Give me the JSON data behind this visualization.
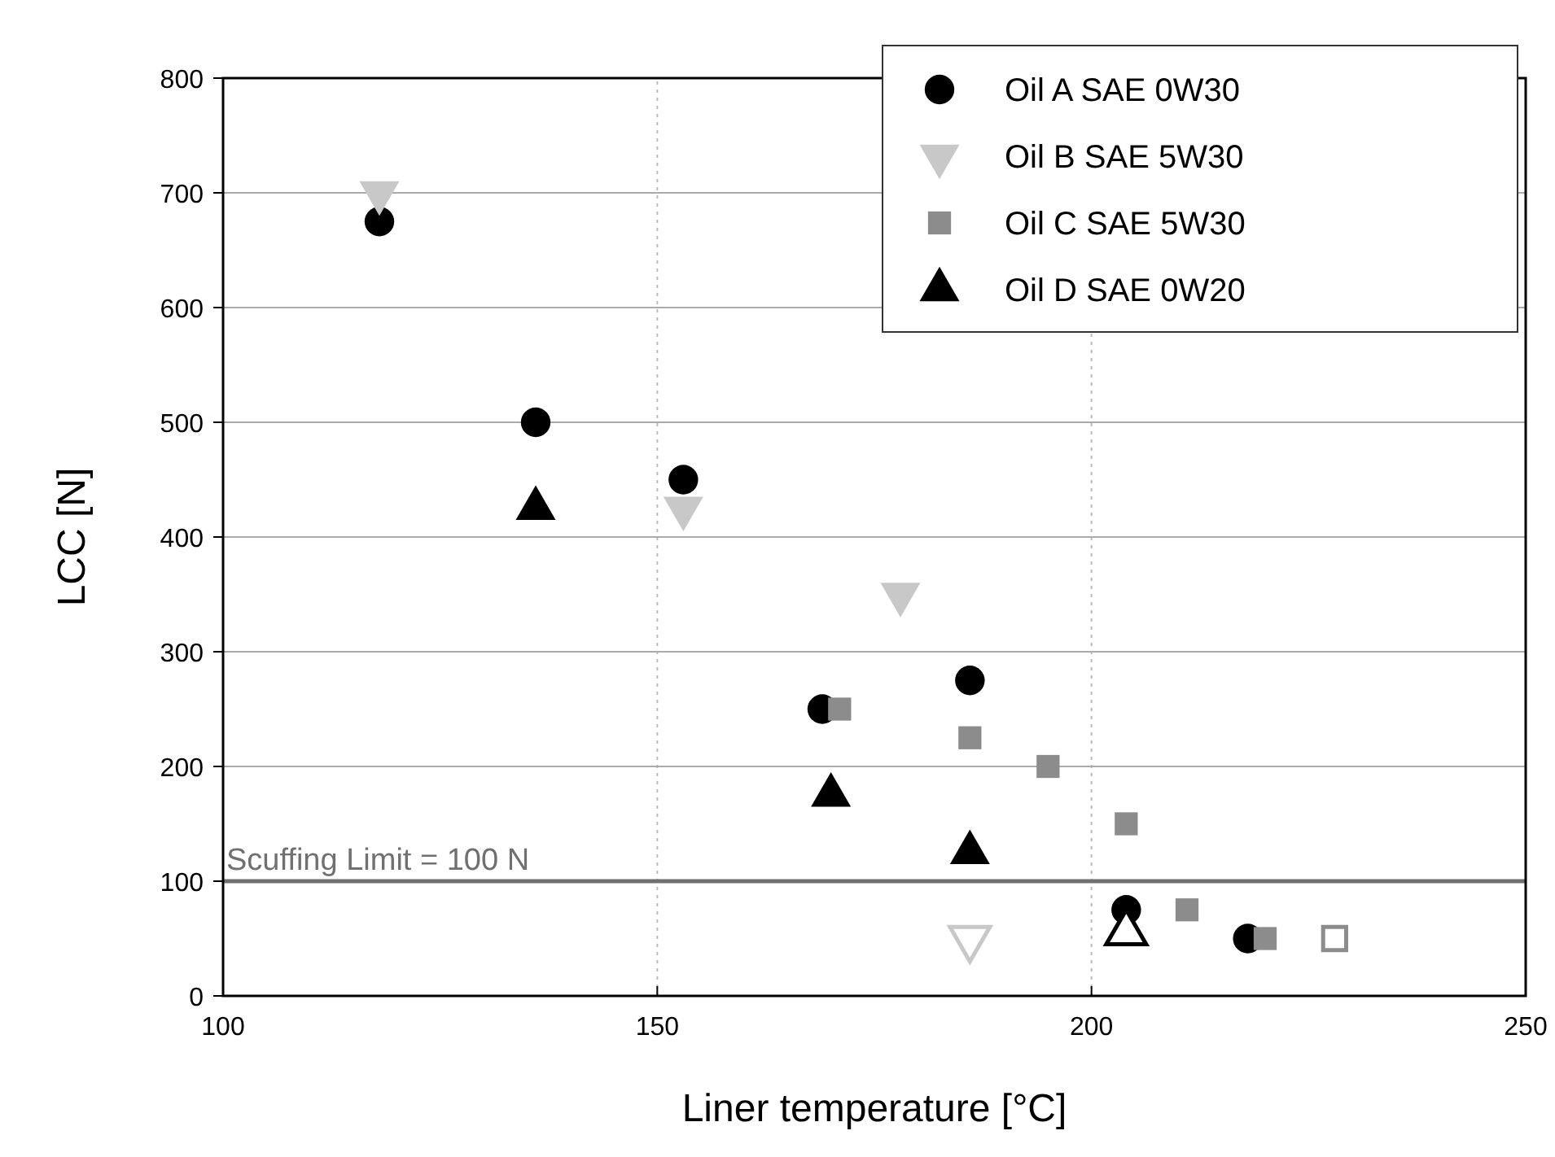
{
  "chart_data": {
    "type": "scatter",
    "xlabel": "Liner temperature [°C]",
    "ylabel": "LCC [N]",
    "xlim": [
      100,
      250
    ],
    "xticks": [
      100,
      150,
      200,
      250
    ],
    "ylim": [
      0,
      800
    ],
    "yticks": [
      0,
      100,
      200,
      300,
      400,
      500,
      600,
      700,
      800
    ],
    "grid": true,
    "legend": "top right",
    "ref_lines": [
      {
        "axis": "y",
        "value": 100,
        "label": "Scuffing Limit = 100 N",
        "color": "#707070"
      }
    ],
    "series": [
      {
        "name": "Oil A SAE 0W30",
        "color": "#000000",
        "marker": "circle",
        "x": [
          118,
          136,
          153,
          169,
          186,
          204,
          218
        ],
        "values": [
          675,
          500,
          450,
          250,
          275,
          75,
          50
        ]
      },
      {
        "name": "Oil B SAE 5W30",
        "color": "#c8c8c8",
        "marker": "triangle-down",
        "x": [
          118,
          153,
          178
        ],
        "values": [
          700,
          425,
          350
        ]
      },
      {
        "name": "Oil C SAE 5W30",
        "color": "#8c8c8c",
        "marker": "square",
        "x": [
          171,
          186,
          195,
          204,
          211,
          220
        ],
        "values": [
          250,
          225,
          200,
          150,
          75,
          50
        ]
      },
      {
        "name": "Oil D SAE 0W20",
        "color": "#000000",
        "marker": "triangle",
        "x": [
          136,
          170,
          186
        ],
        "values": [
          425,
          175,
          125
        ]
      },
      {
        "color": "#c8c8c8",
        "marker": "triangle-down",
        "x": [
          186
        ],
        "values": [
          50
        ]
      },
      {
        "color": "#000000",
        "marker": "triangle",
        "x": [
          204
        ],
        "values": [
          55
        ]
      },
      {
        "color": "#8c8c8c",
        "marker": "square",
        "x": [
          228
        ],
        "values": [
          50
        ]
      }
    ]
  }
}
